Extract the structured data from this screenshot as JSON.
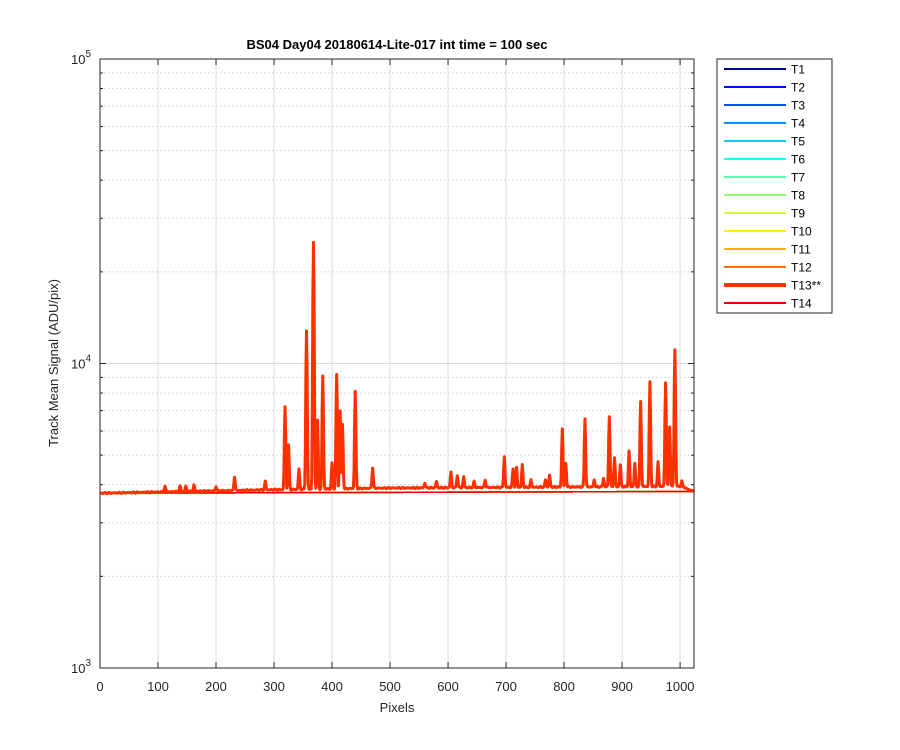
{
  "chart_data": {
    "type": "line",
    "title": "BS04 Day04 20180614-Lite-017 int time = 100 sec",
    "xlabel": "Pixels",
    "ylabel": "Track Mean Signal (ADU/pix)",
    "xlim": [
      0,
      1024
    ],
    "ylim": [
      1000,
      100000
    ],
    "y_scale": "log",
    "grid": true,
    "minor_grid": true,
    "legend_position": "outside-top-right",
    "x_ticks": [
      0,
      100,
      200,
      300,
      400,
      500,
      600,
      700,
      800,
      900,
      1000
    ],
    "x_tick_labels": [
      "0",
      "100",
      "200",
      "300",
      "400",
      "500",
      "600",
      "700",
      "800",
      "900",
      "1000"
    ],
    "y_ticks": [
      {
        "value": 1000,
        "base": "10",
        "exp": "3"
      },
      {
        "value": 10000,
        "base": "10",
        "exp": "4"
      },
      {
        "value": 100000,
        "base": "10",
        "exp": "5"
      }
    ],
    "series": [
      {
        "name": "T1",
        "color": "#00008f",
        "highlight": false
      },
      {
        "name": "T2",
        "color": "#0010ff",
        "highlight": false
      },
      {
        "name": "T3",
        "color": "#0050ff",
        "highlight": false
      },
      {
        "name": "T4",
        "color": "#0090ff",
        "highlight": false
      },
      {
        "name": "T5",
        "color": "#00cfff",
        "highlight": false
      },
      {
        "name": "T6",
        "color": "#10ffef",
        "highlight": false
      },
      {
        "name": "T7",
        "color": "#50ffaf",
        "highlight": false
      },
      {
        "name": "T8",
        "color": "#8fff70",
        "highlight": false
      },
      {
        "name": "T9",
        "color": "#cfff30",
        "highlight": false
      },
      {
        "name": "T10",
        "color": "#ffef00",
        "highlight": false
      },
      {
        "name": "T11",
        "color": "#ffaf00",
        "highlight": false
      },
      {
        "name": "T12",
        "color": "#ff7000",
        "highlight": false
      },
      {
        "name": "T13**",
        "color": "#ff3000",
        "highlight": true
      },
      {
        "name": "T14",
        "color": "#ef0000",
        "highlight": false
      }
    ],
    "baseline": {
      "start": 3750,
      "end": 3800
    },
    "t13_baseline": [
      [
        0,
        3750
      ],
      [
        300,
        3850
      ],
      [
        500,
        3900
      ],
      [
        1000,
        3950
      ],
      [
        1024,
        3800
      ]
    ],
    "t13_peaks": [
      [
        112,
        3950
      ],
      [
        138,
        3950
      ],
      [
        148,
        3950
      ],
      [
        162,
        3980
      ],
      [
        200,
        3950
      ],
      [
        232,
        4250
      ],
      [
        285,
        4100
      ],
      [
        319,
        7200
      ],
      [
        325,
        5400
      ],
      [
        343,
        4500
      ],
      [
        356,
        12800
      ],
      [
        368,
        25000
      ],
      [
        375,
        6500
      ],
      [
        384,
        9100
      ],
      [
        400,
        4700
      ],
      [
        408,
        9200
      ],
      [
        414,
        7000
      ],
      [
        418,
        6300
      ],
      [
        440,
        8100
      ],
      [
        470,
        4550
      ],
      [
        560,
        4050
      ],
      [
        580,
        4100
      ],
      [
        605,
        4400
      ],
      [
        616,
        4300
      ],
      [
        627,
        4250
      ],
      [
        645,
        4100
      ],
      [
        664,
        4150
      ],
      [
        697,
        4950
      ],
      [
        712,
        4500
      ],
      [
        718,
        4550
      ],
      [
        728,
        4650
      ],
      [
        743,
        4150
      ],
      [
        768,
        4150
      ],
      [
        775,
        4300
      ],
      [
        797,
        6100
      ],
      [
        803,
        4700
      ],
      [
        836,
        6600
      ],
      [
        852,
        4150
      ],
      [
        868,
        4200
      ],
      [
        878,
        6700
      ],
      [
        887,
        4900
      ],
      [
        897,
        4650
      ],
      [
        912,
        5150
      ],
      [
        922,
        4700
      ],
      [
        932,
        7500
      ],
      [
        948,
        8700
      ],
      [
        962,
        4750
      ],
      [
        975,
        8650
      ],
      [
        982,
        6200
      ],
      [
        991,
        11100
      ],
      [
        1003,
        4100
      ]
    ]
  }
}
